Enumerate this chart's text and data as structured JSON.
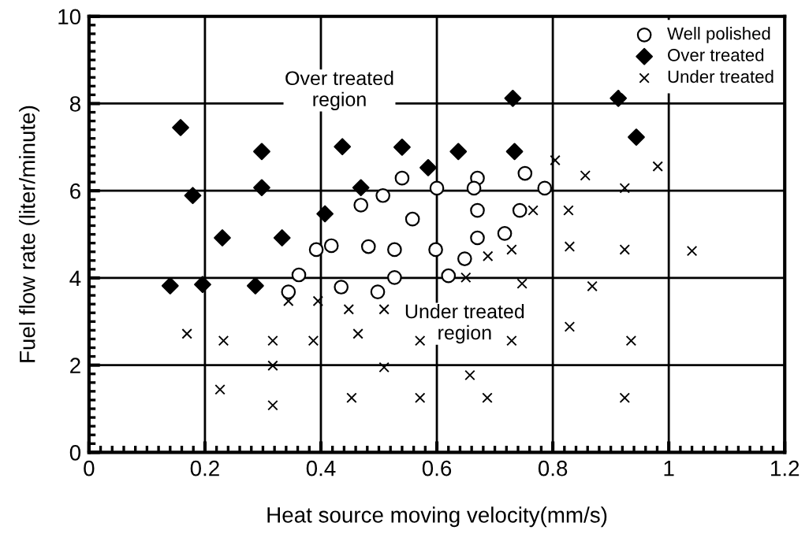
{
  "chart_data": {
    "type": "scatter",
    "xlabel": "Heat source moving velocity(mm/s)",
    "ylabel": "Fuel flow rate (liter/minute)",
    "xlim": [
      0,
      1.2
    ],
    "ylim": [
      0,
      10
    ],
    "xticks": [
      0,
      0.2,
      0.4,
      0.6,
      0.8,
      1,
      1.2
    ],
    "yticks": [
      0,
      2,
      4,
      6,
      8,
      10
    ],
    "grid": true,
    "legend": "top right",
    "series": [
      {
        "name": "Well polished",
        "color": "#000000",
        "marker": "circle",
        "x": [
          0.54,
          0.67,
          0.752,
          0.6,
          0.664,
          0.786,
          0.67,
          0.743,
          0.558,
          0.67,
          0.717,
          0.507,
          0.469,
          0.392,
          0.418,
          0.482,
          0.527,
          0.362,
          0.435,
          0.498,
          0.527,
          0.344,
          0.598,
          0.648,
          0.62
        ],
        "values": [
          6.29,
          6.29,
          6.4,
          6.06,
          6.06,
          6.06,
          5.55,
          5.55,
          5.35,
          4.92,
          5.02,
          5.89,
          5.67,
          4.65,
          4.74,
          4.72,
          4.65,
          4.07,
          3.79,
          3.68,
          4.01,
          3.68,
          4.65,
          4.44,
          4.05
        ]
      },
      {
        "name": "Over treated",
        "color": "#000000",
        "marker": "diamond",
        "x": [
          0.158,
          0.298,
          0.437,
          0.54,
          0.179,
          0.298,
          0.469,
          0.407,
          0.23,
          0.333,
          0.731,
          0.913,
          0.944,
          0.637,
          0.734,
          0.585,
          0.14,
          0.196,
          0.287
        ],
        "values": [
          7.45,
          6.9,
          7.01,
          7.0,
          5.89,
          6.07,
          6.07,
          5.47,
          4.92,
          4.92,
          8.12,
          8.12,
          7.23,
          6.9,
          6.9,
          6.53,
          3.82,
          3.85,
          3.82
        ]
      },
      {
        "name": "Under treated",
        "color": "#000000",
        "marker": "cross",
        "x": [
          0.804,
          0.856,
          0.981,
          0.924,
          0.766,
          0.827,
          0.688,
          0.729,
          0.829,
          0.924,
          1.04,
          0.65,
          0.747,
          0.868,
          0.829,
          0.935,
          0.571,
          0.729,
          0.657,
          0.571,
          0.687,
          0.924,
          0.344,
          0.395,
          0.448,
          0.509,
          0.169,
          0.232,
          0.317,
          0.387,
          0.464,
          0.317,
          0.509,
          0.226,
          0.317,
          0.453
        ],
        "values": [
          6.7,
          6.35,
          6.56,
          6.06,
          5.55,
          5.55,
          4.5,
          4.65,
          4.72,
          4.65,
          4.62,
          4.01,
          3.87,
          3.81,
          2.88,
          2.56,
          2.56,
          2.56,
          1.77,
          1.25,
          1.25,
          1.25,
          3.47,
          3.47,
          3.28,
          3.28,
          2.72,
          2.56,
          2.56,
          2.56,
          2.72,
          1.99,
          1.95,
          1.44,
          1.08,
          1.25
        ]
      }
    ],
    "annotations": [
      "Over treated\nregion",
      "Under treated\nregion"
    ]
  }
}
